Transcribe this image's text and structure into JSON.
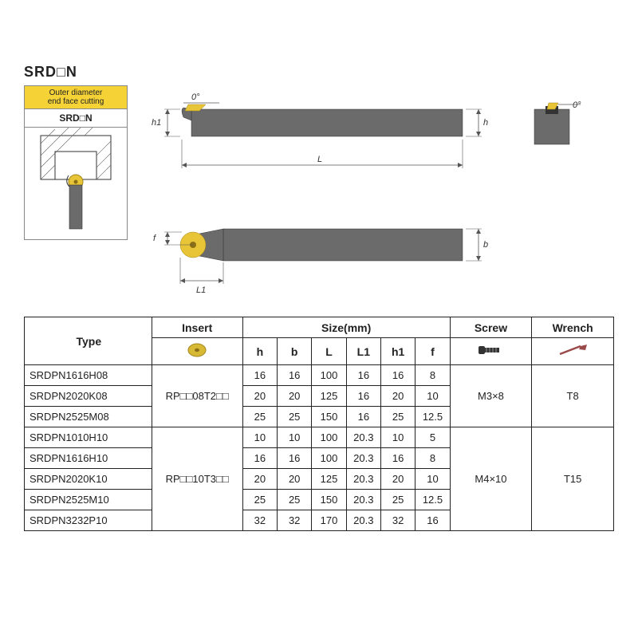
{
  "title": "SRD□N",
  "leftBox": {
    "headLine1": "Outer diameter",
    "headLine2": "end face cutting",
    "label": "SRD□N"
  },
  "diagram": {
    "angleLabel": "0°",
    "h1": "h1",
    "h": "h",
    "L": "L",
    "L1": "L1",
    "f": "f",
    "b": "b",
    "partColor": "#6b6b6b",
    "insertColor": "#e8c437",
    "lineColor": "#555555",
    "background": "#ffffff"
  },
  "table": {
    "headers": {
      "type": "Type",
      "insert": "Insert",
      "size": "Size(mm)",
      "screw": "Screw",
      "wrench": "Wrench",
      "cols": [
        "h",
        "b",
        "L",
        "L1",
        "h1",
        "f"
      ]
    },
    "groups": [
      {
        "insert": "RP□□08T2□□",
        "screw": "M3×8",
        "wrench": "T8",
        "rows": [
          {
            "type": "SRDPN1616H08",
            "h": "16",
            "b": "16",
            "L": "100",
            "L1": "16",
            "h1": "16",
            "f": "8"
          },
          {
            "type": "SRDPN2020K08",
            "h": "20",
            "b": "20",
            "L": "125",
            "L1": "16",
            "h1": "20",
            "f": "10"
          },
          {
            "type": "SRDPN2525M08",
            "h": "25",
            "b": "25",
            "L": "150",
            "L1": "16",
            "h1": "25",
            "f": "12.5"
          }
        ]
      },
      {
        "insert": "RP□□10T3□□",
        "screw": "M4×10",
        "wrench": "T15",
        "rows": [
          {
            "type": "SRDPN1010H10",
            "h": "10",
            "b": "10",
            "L": "100",
            "L1": "20.3",
            "h1": "10",
            "f": "5"
          },
          {
            "type": "SRDPN1616H10",
            "h": "16",
            "b": "16",
            "L": "100",
            "L1": "20.3",
            "h1": "16",
            "f": "8"
          },
          {
            "type": "SRDPN2020K10",
            "h": "20",
            "b": "20",
            "L": "125",
            "L1": "20.3",
            "h1": "20",
            "f": "10"
          },
          {
            "type": "SRDPN2525M10",
            "h": "25",
            "b": "25",
            "L": "150",
            "L1": "20.3",
            "h1": "25",
            "f": "12.5"
          },
          {
            "type": "SRDPN3232P10",
            "h": "32",
            "b": "32",
            "L": "170",
            "L1": "20.3",
            "h1": "32",
            "f": "16"
          }
        ]
      }
    ]
  },
  "style": {
    "fontSize": 13,
    "headerFontSize": 14,
    "borderColor": "#222222",
    "insertIconColor": "#d8b936",
    "screwIconColor": "#333333",
    "wrenchIconColor": "#9a4a4a"
  }
}
